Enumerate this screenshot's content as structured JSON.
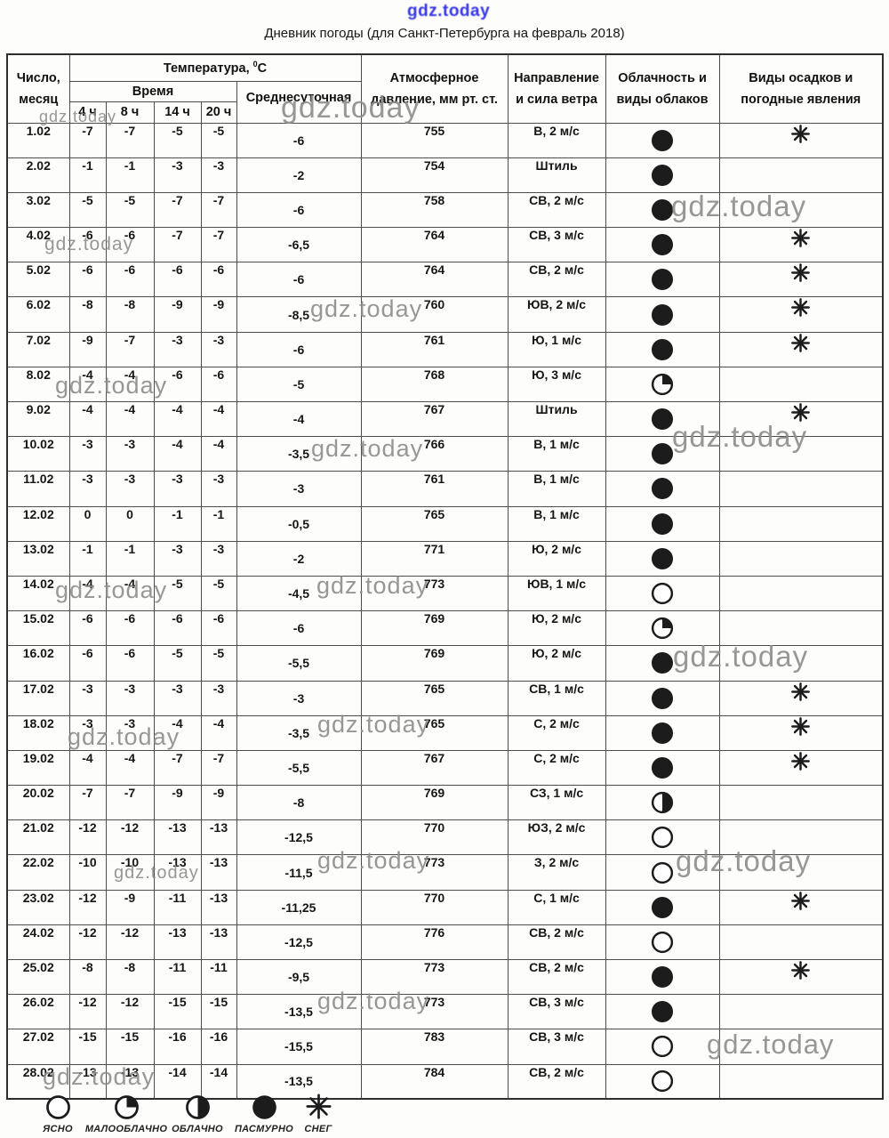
{
  "watermark": {
    "text": "gdz.today"
  },
  "title": "Дневник погоды (для Санкт-Петербурга на февраль 2018)",
  "table": {
    "headers": {
      "date_line1": "Число,",
      "date_line2": "месяц",
      "temp_prefix": "Температура, ",
      "temp_sup": "0",
      "temp_unit": "С",
      "time": "Время",
      "time_cols": [
        "4 ч",
        "8 ч",
        "14 ч",
        "20 ч"
      ],
      "avg": "Среднесуточная",
      "pressure_line1": "Атмосферное",
      "pressure_line2": "давление, мм рт. ст.",
      "wind_line1": "Направление",
      "wind_line2": "и сила ветра",
      "clouds_line1": "Облачность и",
      "clouds_line2": "виды облаков",
      "precip_line1": "Виды осадков и",
      "precip_line2": "погодные явления"
    },
    "rows": [
      {
        "date": "1.02",
        "t4": "-7",
        "t8": "-7",
        "t14": "-5",
        "t20": "-5",
        "avg": "-6",
        "pressure": "755",
        "wind": "В, 2 м/с",
        "cloud": "overcast",
        "precip": "snow"
      },
      {
        "date": "2.02",
        "t4": "-1",
        "t8": "-1",
        "t14": "-3",
        "t20": "-3",
        "avg": "-2",
        "pressure": "754",
        "wind": "Штиль",
        "cloud": "overcast",
        "precip": ""
      },
      {
        "date": "3.02",
        "t4": "-5",
        "t8": "-5",
        "t14": "-7",
        "t20": "-7",
        "avg": "-6",
        "pressure": "758",
        "wind": "СВ, 2 м/с",
        "cloud": "overcast",
        "precip": ""
      },
      {
        "date": "4.02",
        "t4": "-6",
        "t8": "-6",
        "t14": "-7",
        "t20": "-7",
        "avg": "-6,5",
        "pressure": "764",
        "wind": "СВ, 3 м/с",
        "cloud": "overcast",
        "precip": "snow"
      },
      {
        "date": "5.02",
        "t4": "-6",
        "t8": "-6",
        "t14": "-6",
        "t20": "-6",
        "avg": "-6",
        "pressure": "764",
        "wind": "СВ, 2 м/с",
        "cloud": "overcast",
        "precip": "snow"
      },
      {
        "date": "6.02",
        "t4": "-8",
        "t8": "-8",
        "t14": "-9",
        "t20": "-9",
        "avg": "-8,5",
        "pressure": "760",
        "wind": "ЮВ, 2 м/с",
        "cloud": "overcast",
        "precip": "snow"
      },
      {
        "date": "7.02",
        "t4": "-9",
        "t8": "-7",
        "t14": "-3",
        "t20": "-3",
        "avg": "-6",
        "pressure": "761",
        "wind": "Ю, 1 м/с",
        "cloud": "overcast",
        "precip": "snow"
      },
      {
        "date": "8.02",
        "t4": "-4",
        "t8": "-4",
        "t14": "-6",
        "t20": "-6",
        "avg": "-5",
        "pressure": "768",
        "wind": "Ю, 3 м/с",
        "cloud": "partly-cloudy",
        "precip": ""
      },
      {
        "date": "9.02",
        "t4": "-4",
        "t8": "-4",
        "t14": "-4",
        "t20": "-4",
        "avg": "-4",
        "pressure": "767",
        "wind": "Штиль",
        "cloud": "overcast",
        "precip": "snow"
      },
      {
        "date": "10.02",
        "t4": "-3",
        "t8": "-3",
        "t14": "-4",
        "t20": "-4",
        "avg": "-3,5",
        "pressure": "766",
        "wind": "В, 1 м/с",
        "cloud": "overcast",
        "precip": ""
      },
      {
        "date": "11.02",
        "t4": "-3",
        "t8": "-3",
        "t14": "-3",
        "t20": "-3",
        "avg": "-3",
        "pressure": "761",
        "wind": "В, 1 м/с",
        "cloud": "overcast",
        "precip": ""
      },
      {
        "date": "12.02",
        "t4": "0",
        "t8": "0",
        "t14": "-1",
        "t20": "-1",
        "avg": "-0,5",
        "pressure": "765",
        "wind": "В, 1 м/с",
        "cloud": "overcast",
        "precip": ""
      },
      {
        "date": "13.02",
        "t4": "-1",
        "t8": "-1",
        "t14": "-3",
        "t20": "-3",
        "avg": "-2",
        "pressure": "771",
        "wind": "Ю, 2 м/с",
        "cloud": "overcast",
        "precip": ""
      },
      {
        "date": "14.02",
        "t4": "-4",
        "t8": "-4",
        "t14": "-5",
        "t20": "-5",
        "avg": "-4,5",
        "pressure": "773",
        "wind": "ЮВ, 1 м/с",
        "cloud": "clear",
        "precip": ""
      },
      {
        "date": "15.02",
        "t4": "-6",
        "t8": "-6",
        "t14": "-6",
        "t20": "-6",
        "avg": "-6",
        "pressure": "769",
        "wind": "Ю, 2 м/с",
        "cloud": "partly-cloudy",
        "precip": ""
      },
      {
        "date": "16.02",
        "t4": "-6",
        "t8": "-6",
        "t14": "-5",
        "t20": "-5",
        "avg": "-5,5",
        "pressure": "769",
        "wind": "Ю, 2 м/с",
        "cloud": "overcast",
        "precip": ""
      },
      {
        "date": "17.02",
        "t4": "-3",
        "t8": "-3",
        "t14": "-3",
        "t20": "-3",
        "avg": "-3",
        "pressure": "765",
        "wind": "СВ, 1 м/с",
        "cloud": "overcast",
        "precip": "snow"
      },
      {
        "date": "18.02",
        "t4": "-3",
        "t8": "-3",
        "t14": "-4",
        "t20": "-4",
        "avg": "-3,5",
        "pressure": "765",
        "wind": "С, 2 м/с",
        "cloud": "overcast",
        "precip": "snow"
      },
      {
        "date": "19.02",
        "t4": "-4",
        "t8": "-4",
        "t14": "-7",
        "t20": "-7",
        "avg": "-5,5",
        "pressure": "767",
        "wind": "С, 2 м/с",
        "cloud": "overcast",
        "precip": "snow"
      },
      {
        "date": "20.02",
        "t4": "-7",
        "t8": "-7",
        "t14": "-9",
        "t20": "-9",
        "avg": "-8",
        "pressure": "769",
        "wind": "СЗ, 1 м/с",
        "cloud": "cloudy",
        "precip": ""
      },
      {
        "date": "21.02",
        "t4": "-12",
        "t8": "-12",
        "t14": "-13",
        "t20": "-13",
        "avg": "-12,5",
        "pressure": "770",
        "wind": "ЮЗ, 2 м/с",
        "cloud": "clear",
        "precip": ""
      },
      {
        "date": "22.02",
        "t4": "-10",
        "t8": "-10",
        "t14": "-13",
        "t20": "-13",
        "avg": "-11,5",
        "pressure": "773",
        "wind": "З, 2 м/с",
        "cloud": "clear",
        "precip": ""
      },
      {
        "date": "23.02",
        "t4": "-12",
        "t8": "-9",
        "t14": "-11",
        "t20": "-13",
        "avg": "-11,25",
        "pressure": "770",
        "wind": "С, 1 м/с",
        "cloud": "overcast",
        "precip": "snow"
      },
      {
        "date": "24.02",
        "t4": "-12",
        "t8": "-12",
        "t14": "-13",
        "t20": "-13",
        "avg": "-12,5",
        "pressure": "776",
        "wind": "СВ, 2 м/с",
        "cloud": "clear",
        "precip": ""
      },
      {
        "date": "25.02",
        "t4": "-8",
        "t8": "-8",
        "t14": "-11",
        "t20": "-11",
        "avg": "-9,5",
        "pressure": "773",
        "wind": "СВ, 2 м/с",
        "cloud": "overcast",
        "precip": "snow"
      },
      {
        "date": "26.02",
        "t4": "-12",
        "t8": "-12",
        "t14": "-15",
        "t20": "-15",
        "avg": "-13,5",
        "pressure": "773",
        "wind": "СВ, 3 м/с",
        "cloud": "overcast",
        "precip": ""
      },
      {
        "date": "27.02",
        "t4": "-15",
        "t8": "-15",
        "t14": "-16",
        "t20": "-16",
        "avg": "-15,5",
        "pressure": "783",
        "wind": "СВ, 3 м/с",
        "cloud": "clear",
        "precip": ""
      },
      {
        "date": "28.02",
        "t4": "-13",
        "t8": "-13",
        "t14": "-14",
        "t20": "-14",
        "avg": "-13,5",
        "pressure": "784",
        "wind": "СВ, 2 м/с",
        "cloud": "clear",
        "precip": ""
      }
    ]
  },
  "legend": {
    "items": [
      {
        "icon": "clear",
        "label": "ЯСНО"
      },
      {
        "icon": "partly-cloudy",
        "label": "МАЛООБЛАЧНО"
      },
      {
        "icon": "cloudy",
        "label": "ОБЛАЧНО"
      },
      {
        "icon": "overcast",
        "label": "ПАСМУРНО"
      },
      {
        "icon": "snow",
        "label": "СНЕГ"
      }
    ]
  }
}
